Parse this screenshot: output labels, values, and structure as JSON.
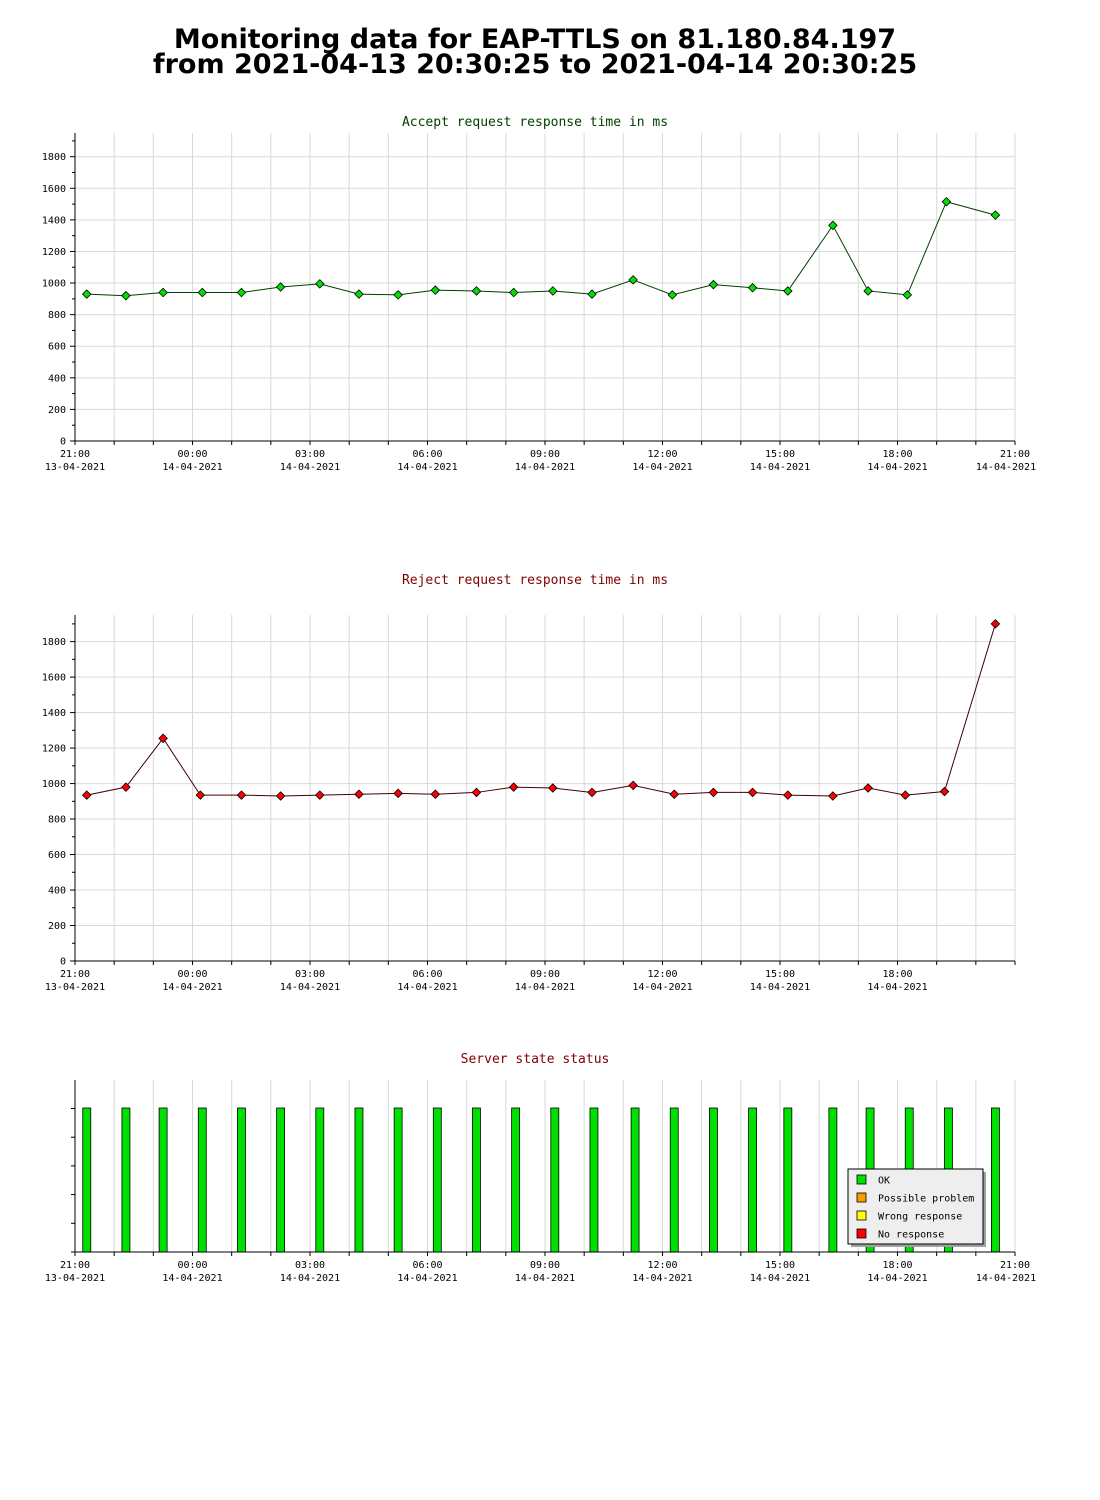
{
  "page": {
    "title_line1": "Monitoring data for EAP-TTLS on 81.180.84.197",
    "title_line2": "from 2021-04-13 20:30:25 to 2021-04-14 20:30:25"
  },
  "colors": {
    "accept_title": "#004000",
    "reject_title": "#800000",
    "status_title": "#800000",
    "accept_marker": "#00e000",
    "reject_marker": "#ff0000",
    "ok": "#00e000",
    "possible_problem": "#ff9900",
    "wrong_response": "#ffff00",
    "no_response": "#ff0000"
  },
  "chart_data": [
    {
      "type": "line",
      "title": "Accept request response time in ms",
      "xlim_hours": [
        21,
        45
      ],
      "ylim": [
        0,
        1950
      ],
      "yticks": [
        0,
        200,
        400,
        600,
        800,
        1000,
        1200,
        1400,
        1600,
        1800
      ],
      "xticks": [
        {
          "h": 21,
          "time": "21:00",
          "date": "13-04-2021"
        },
        {
          "h": 24,
          "time": "00:00",
          "date": "14-04-2021"
        },
        {
          "h": 27,
          "time": "03:00",
          "date": "14-04-2021"
        },
        {
          "h": 30,
          "time": "06:00",
          "date": "14-04-2021"
        },
        {
          "h": 33,
          "time": "09:00",
          "date": "14-04-2021"
        },
        {
          "h": 36,
          "time": "12:00",
          "date": "14-04-2021"
        },
        {
          "h": 39,
          "time": "15:00",
          "date": "14-04-2021"
        },
        {
          "h": 42,
          "time": "18:00",
          "date": "14-04-2021"
        },
        {
          "h": 45,
          "time": "21:00",
          "date": "14-04-2021"
        }
      ],
      "grid": true,
      "x": [
        21.3,
        22.3,
        23.25,
        24.25,
        25.25,
        26.25,
        27.25,
        28.25,
        29.25,
        30.2,
        31.25,
        32.2,
        33.2,
        34.2,
        35.25,
        36.25,
        37.3,
        38.3,
        39.2,
        40.35,
        41.25,
        42.25,
        43.25,
        44.5
      ],
      "values": [
        930,
        920,
        940,
        940,
        940,
        975,
        995,
        930,
        925,
        955,
        950,
        940,
        950,
        930,
        1020,
        925,
        990,
        970,
        950,
        1365,
        950,
        925,
        1515,
        1430
      ]
    },
    {
      "type": "line",
      "title": "Reject request response time in ms",
      "xlim_hours": [
        21,
        45
      ],
      "ylim": [
        0,
        1950
      ],
      "yticks": [
        0,
        200,
        400,
        600,
        800,
        1000,
        1200,
        1400,
        1600,
        1800
      ],
      "xticks": [
        {
          "h": 21,
          "time": "21:00",
          "date": "13-04-2021"
        },
        {
          "h": 24,
          "time": "00:00",
          "date": "14-04-2021"
        },
        {
          "h": 27,
          "time": "03:00",
          "date": "14-04-2021"
        },
        {
          "h": 30,
          "time": "06:00",
          "date": "14-04-2021"
        },
        {
          "h": 33,
          "time": "09:00",
          "date": "14-04-2021"
        },
        {
          "h": 36,
          "time": "12:00",
          "date": "14-04-2021"
        },
        {
          "h": 39,
          "time": "15:00",
          "date": "14-04-2021"
        },
        {
          "h": 42,
          "time": "18:00",
          "date": "14-04-2021"
        }
      ],
      "grid": true,
      "x": [
        21.3,
        22.3,
        23.25,
        24.2,
        25.25,
        26.25,
        27.25,
        28.25,
        29.25,
        30.2,
        31.25,
        32.2,
        33.2,
        34.2,
        35.25,
        36.3,
        37.3,
        38.3,
        39.2,
        40.35,
        41.25,
        42.2,
        43.2,
        44.5
      ],
      "values": [
        935,
        980,
        1255,
        935,
        935,
        930,
        935,
        940,
        945,
        940,
        950,
        980,
        975,
        950,
        990,
        940,
        950,
        950,
        935,
        930,
        975,
        935,
        955,
        1900
      ]
    },
    {
      "type": "bar",
      "title": "Server state status",
      "xlim_hours": [
        21,
        45
      ],
      "xticks": [
        {
          "h": 21,
          "time": "21:00",
          "date": "13-04-2021"
        },
        {
          "h": 24,
          "time": "00:00",
          "date": "14-04-2021"
        },
        {
          "h": 27,
          "time": "03:00",
          "date": "14-04-2021"
        },
        {
          "h": 30,
          "time": "06:00",
          "date": "14-04-2021"
        },
        {
          "h": 33,
          "time": "09:00",
          "date": "14-04-2021"
        },
        {
          "h": 36,
          "time": "12:00",
          "date": "14-04-2021"
        },
        {
          "h": 39,
          "time": "15:00",
          "date": "14-04-2021"
        },
        {
          "h": 42,
          "time": "18:00",
          "date": "14-04-2021"
        },
        {
          "h": 45,
          "time": "21:00",
          "date": "14-04-2021"
        }
      ],
      "x": [
        21.3,
        22.3,
        23.25,
        24.25,
        25.25,
        26.25,
        27.25,
        28.25,
        29.25,
        30.25,
        31.25,
        32.25,
        33.25,
        34.25,
        35.3,
        36.3,
        37.3,
        38.3,
        39.2,
        40.35,
        41.3,
        42.3,
        43.3,
        44.5
      ],
      "states": [
        "OK",
        "OK",
        "OK",
        "OK",
        "OK",
        "OK",
        "OK",
        "OK",
        "OK",
        "OK",
        "OK",
        "OK",
        "OK",
        "OK",
        "OK",
        "OK",
        "OK",
        "OK",
        "OK",
        "OK",
        "OK",
        "OK",
        "OK",
        "OK"
      ],
      "legend": {
        "position": "bottom-right",
        "items": [
          {
            "label": "OK",
            "state": "OK"
          },
          {
            "label": "Possible problem",
            "state": "possible_problem"
          },
          {
            "label": "Wrong response",
            "state": "wrong_response"
          },
          {
            "label": "No response",
            "state": "no_response"
          }
        ]
      }
    }
  ]
}
